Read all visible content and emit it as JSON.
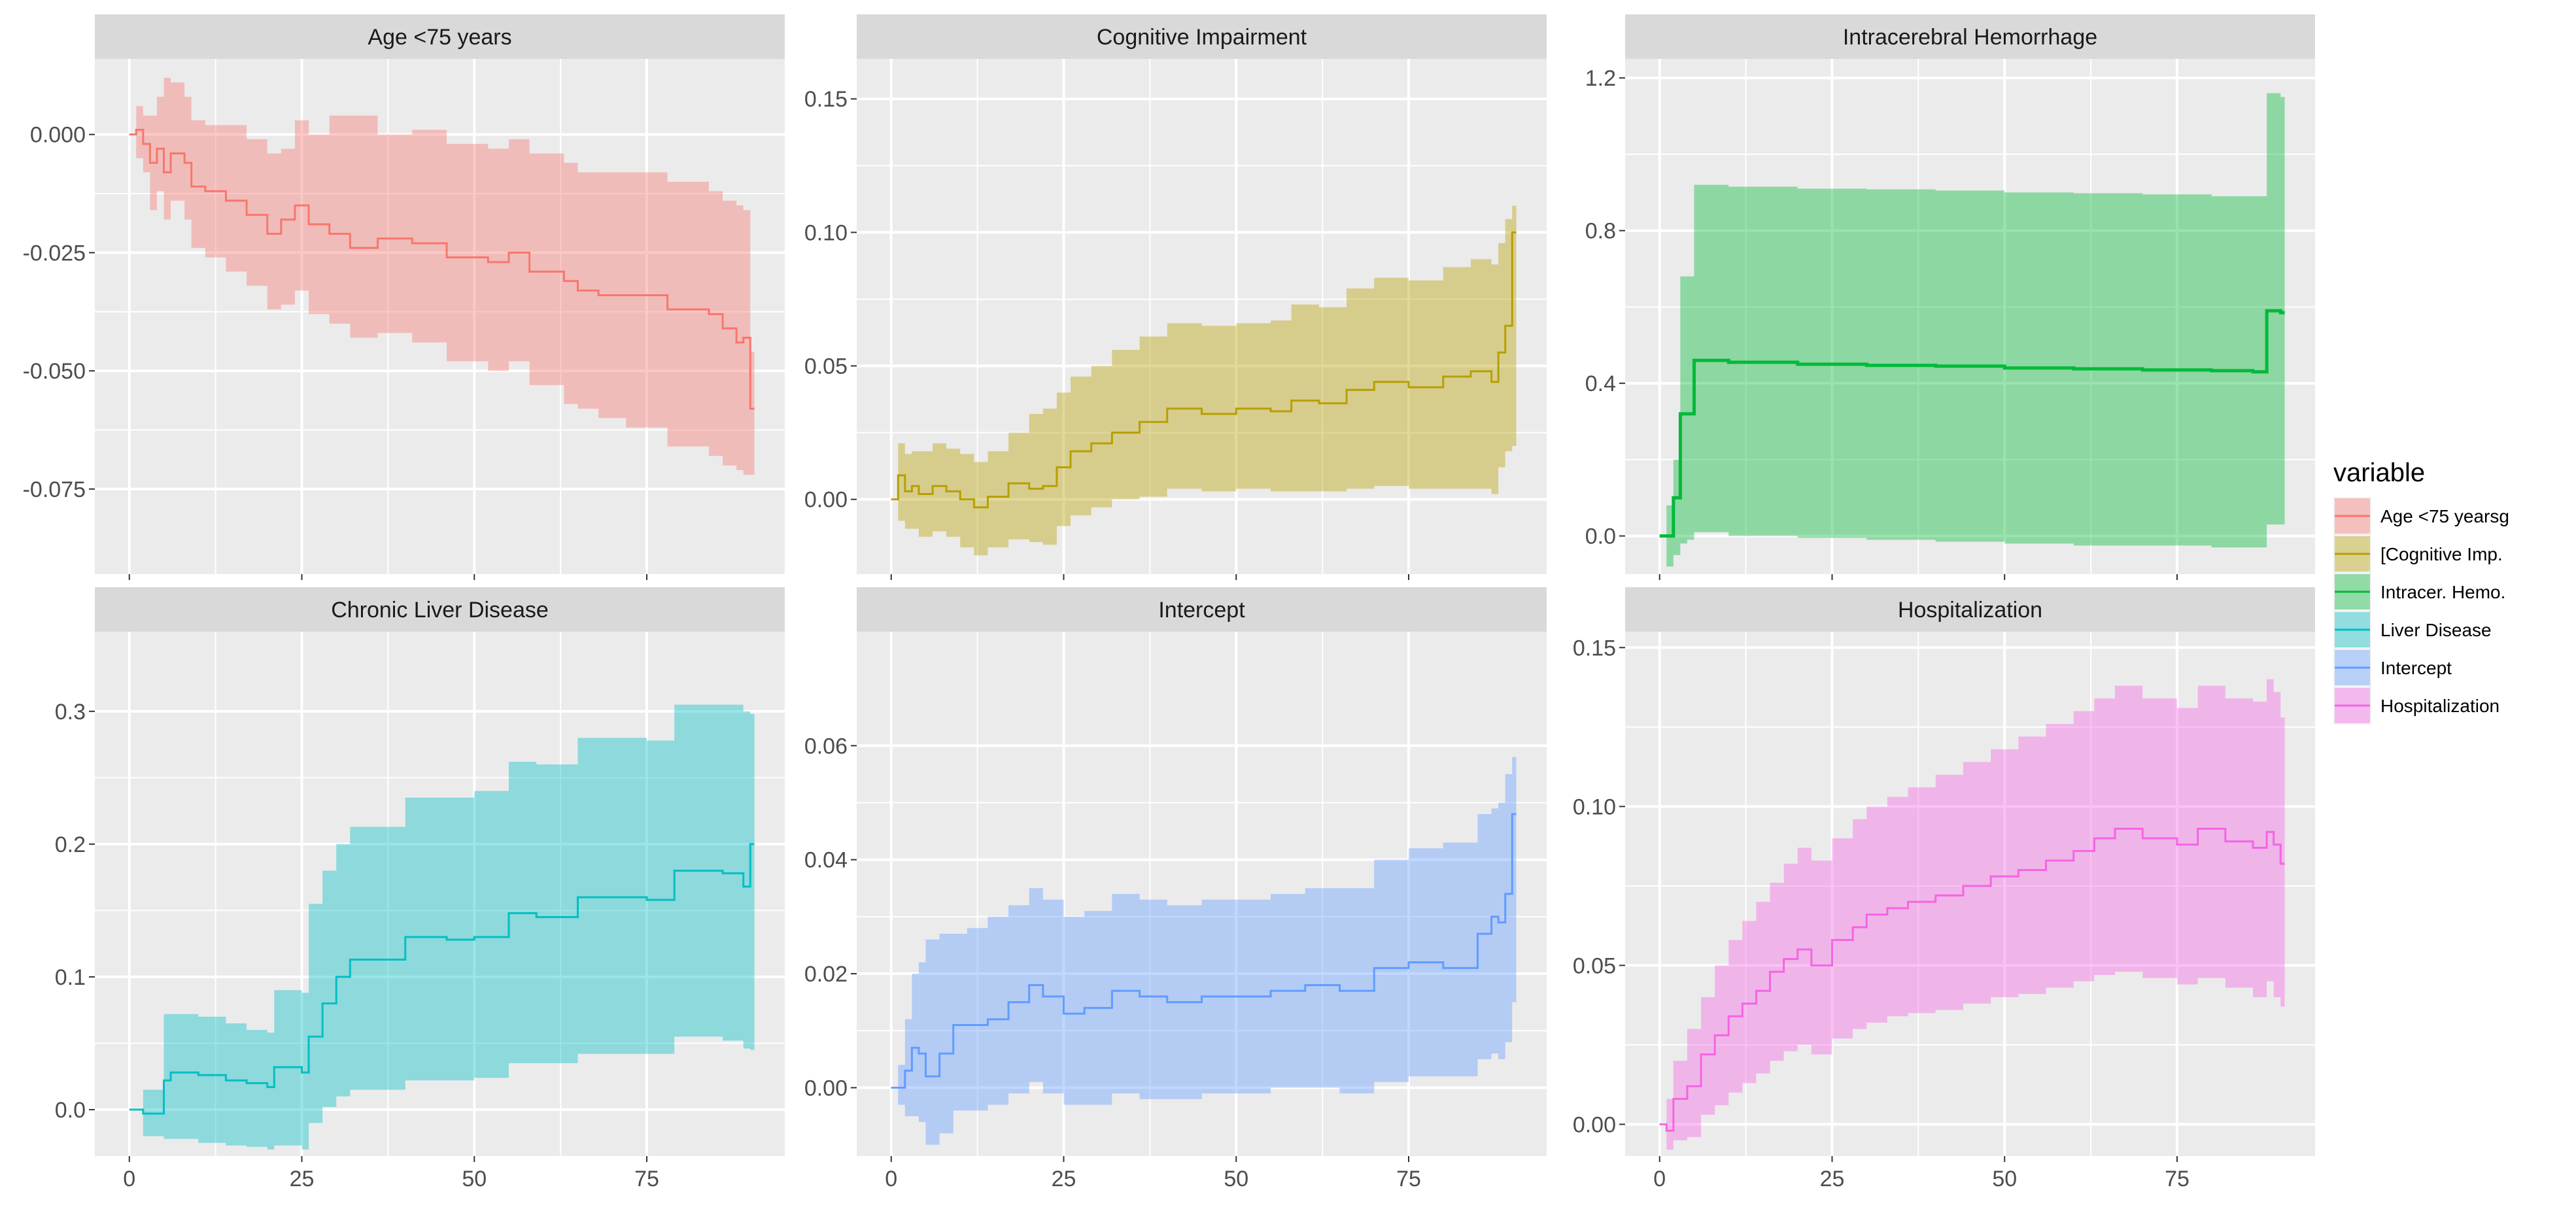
{
  "chart_data": {
    "type": "area",
    "description_free": true,
    "legend": {
      "title": "variable",
      "entries": [
        {
          "label": "Age <75 yearsg",
          "color": "#F8766D"
        },
        {
          "label": "[Cognitive Imp.",
          "color": "#B79F00"
        },
        {
          "label": "Intracer. Hemo.",
          "color": "#00BA38"
        },
        {
          "label": "Liver Disease",
          "color": "#00BFC4"
        },
        {
          "label": "Intercept",
          "color": "#619CFF"
        },
        {
          "label": "Hospitalization",
          "color": "#F564E3"
        }
      ]
    },
    "x_ticks": [
      0,
      25,
      50,
      75
    ],
    "xlim": [
      -5,
      95
    ],
    "panels": [
      {
        "title": "Age <75 years",
        "color": "#F8766D",
        "ylim": [
          -0.093,
          0.016
        ],
        "y_ticks": [
          0.0,
          -0.025,
          -0.05,
          -0.075
        ],
        "y_tick_labels": [
          "0.000",
          "-0.025",
          "-0.050",
          "-0.075"
        ],
        "x": [
          0,
          1,
          2,
          3,
          4,
          5,
          6,
          8,
          9,
          11,
          14,
          17,
          20,
          22,
          24,
          26,
          29,
          32,
          36,
          41,
          46,
          52,
          55,
          58,
          63,
          65,
          68,
          72,
          78,
          84,
          86,
          88,
          89,
          90
        ],
        "mean": [
          0.0,
          0.001,
          -0.002,
          -0.006,
          -0.003,
          -0.008,
          -0.004,
          -0.006,
          -0.011,
          -0.012,
          -0.014,
          -0.017,
          -0.021,
          -0.018,
          -0.015,
          -0.019,
          -0.021,
          -0.024,
          -0.022,
          -0.023,
          -0.026,
          -0.027,
          -0.025,
          -0.029,
          -0.031,
          -0.033,
          -0.034,
          -0.034,
          -0.037,
          -0.038,
          -0.041,
          -0.044,
          -0.043,
          -0.058
        ],
        "lower": [
          0.0,
          -0.005,
          -0.008,
          -0.016,
          -0.012,
          -0.018,
          -0.014,
          -0.018,
          -0.024,
          -0.026,
          -0.029,
          -0.032,
          -0.037,
          -0.036,
          -0.033,
          -0.038,
          -0.04,
          -0.043,
          -0.042,
          -0.044,
          -0.048,
          -0.05,
          -0.048,
          -0.053,
          -0.057,
          -0.058,
          -0.06,
          -0.062,
          -0.066,
          -0.068,
          -0.07,
          -0.071,
          -0.072,
          -0.072
        ],
        "upper": [
          0.0,
          0.006,
          0.004,
          0.004,
          0.008,
          0.012,
          0.011,
          0.008,
          0.003,
          0.002,
          0.002,
          -0.001,
          -0.004,
          -0.003,
          0.003,
          0.0,
          0.004,
          0.004,
          0.0,
          0.001,
          -0.002,
          -0.003,
          -0.001,
          -0.004,
          -0.006,
          -0.008,
          -0.008,
          -0.008,
          -0.01,
          -0.012,
          -0.014,
          -0.015,
          -0.016,
          -0.046
        ]
      },
      {
        "title": "Cognitive Impairment",
        "color": "#B79F00",
        "ylim": [
          -0.028,
          0.165
        ],
        "y_ticks": [
          0.0,
          0.05,
          0.1,
          0.15
        ],
        "y_tick_labels": [
          "0.00",
          "0.05",
          "0.10",
          "0.15"
        ],
        "x": [
          0,
          1,
          2,
          3,
          4,
          6,
          8,
          10,
          12,
          14,
          17,
          20,
          22,
          24,
          26,
          29,
          32,
          36,
          40,
          45,
          50,
          55,
          58,
          62,
          66,
          70,
          75,
          80,
          84,
          87,
          88,
          89,
          90
        ],
        "mean": [
          0.0,
          0.009,
          0.003,
          0.005,
          0.002,
          0.005,
          0.003,
          0.0,
          -0.003,
          0.001,
          0.006,
          0.004,
          0.005,
          0.012,
          0.018,
          0.021,
          0.025,
          0.029,
          0.034,
          0.032,
          0.034,
          0.033,
          0.037,
          0.036,
          0.041,
          0.044,
          0.042,
          0.046,
          0.048,
          0.044,
          0.055,
          0.065,
          0.1
        ],
        "lower": [
          0.0,
          -0.008,
          -0.011,
          -0.011,
          -0.014,
          -0.012,
          -0.014,
          -0.018,
          -0.021,
          -0.018,
          -0.015,
          -0.016,
          -0.017,
          -0.01,
          -0.006,
          -0.003,
          0.0,
          0.001,
          0.004,
          0.003,
          0.004,
          0.003,
          0.003,
          0.003,
          0.004,
          0.005,
          0.004,
          0.004,
          0.004,
          0.002,
          0.012,
          0.018,
          0.02
        ],
        "upper": [
          0.0,
          0.021,
          0.017,
          0.018,
          0.018,
          0.021,
          0.019,
          0.017,
          0.014,
          0.018,
          0.025,
          0.032,
          0.034,
          0.04,
          0.046,
          0.05,
          0.056,
          0.061,
          0.066,
          0.065,
          0.066,
          0.067,
          0.073,
          0.072,
          0.079,
          0.083,
          0.082,
          0.087,
          0.09,
          0.088,
          0.096,
          0.105,
          0.11
        ]
      },
      {
        "title": "Intracerebral Hemorrhage",
        "color": "#00BA38",
        "ylim": [
          -0.1,
          1.25
        ],
        "y_ticks": [
          0.0,
          0.4,
          0.8,
          1.2
        ],
        "y_tick_labels": [
          "0.0",
          "0.4",
          "0.8",
          "1.2"
        ],
        "x": [
          0,
          1,
          2,
          3,
          4,
          5,
          7,
          10,
          20,
          30,
          40,
          50,
          60,
          70,
          80,
          86,
          87,
          88,
          89,
          90
        ],
        "mean": [
          0.0,
          0.0,
          0.1,
          0.32,
          0.32,
          0.46,
          0.46,
          0.455,
          0.45,
          0.447,
          0.445,
          0.44,
          0.438,
          0.435,
          0.433,
          0.43,
          0.43,
          0.59,
          0.59,
          0.585
        ],
        "lower": [
          0.0,
          -0.08,
          -0.05,
          -0.02,
          -0.01,
          0.01,
          0.01,
          0.0,
          -0.005,
          -0.01,
          -0.015,
          -0.02,
          -0.025,
          -0.025,
          -0.03,
          -0.03,
          -0.03,
          0.03,
          0.03,
          0.03
        ],
        "upper": [
          0.0,
          0.08,
          0.2,
          0.68,
          0.68,
          0.92,
          0.92,
          0.915,
          0.91,
          0.908,
          0.905,
          0.9,
          0.898,
          0.895,
          0.89,
          0.89,
          0.89,
          1.16,
          1.16,
          1.15
        ]
      },
      {
        "title": "Chronic Liver Disease",
        "color": "#00BFC4",
        "ylim": [
          -0.035,
          0.36
        ],
        "y_ticks": [
          0.0,
          0.1,
          0.2,
          0.3
        ],
        "y_tick_labels": [
          "0.0",
          "0.1",
          "0.2",
          "0.3"
        ],
        "x": [
          0,
          2,
          5,
          6,
          10,
          14,
          17,
          20,
          21,
          25,
          26,
          28,
          30,
          32,
          36,
          40,
          46,
          50,
          55,
          59,
          65,
          70,
          75,
          79,
          86,
          89,
          90
        ],
        "mean": [
          0.0,
          -0.003,
          0.022,
          0.028,
          0.026,
          0.022,
          0.02,
          0.017,
          0.032,
          0.028,
          0.055,
          0.08,
          0.1,
          0.113,
          0.113,
          0.13,
          0.128,
          0.13,
          0.148,
          0.145,
          0.16,
          0.16,
          0.158,
          0.18,
          0.178,
          0.168,
          0.2
        ],
        "lower": [
          0.0,
          -0.02,
          -0.022,
          -0.022,
          -0.025,
          -0.027,
          -0.028,
          -0.03,
          -0.027,
          -0.03,
          -0.01,
          0.002,
          0.01,
          0.015,
          0.015,
          0.022,
          0.022,
          0.024,
          0.035,
          0.035,
          0.042,
          0.042,
          0.042,
          0.055,
          0.052,
          0.046,
          0.045
        ],
        "upper": [
          0.0,
          0.015,
          0.072,
          0.072,
          0.07,
          0.065,
          0.06,
          0.058,
          0.09,
          0.088,
          0.155,
          0.18,
          0.2,
          0.213,
          0.213,
          0.235,
          0.235,
          0.24,
          0.262,
          0.26,
          0.28,
          0.28,
          0.278,
          0.305,
          0.305,
          0.3,
          0.298
        ]
      },
      {
        "title": "Intercept",
        "color": "#619CFF",
        "ylim": [
          -0.012,
          0.08
        ],
        "y_ticks": [
          0.0,
          0.02,
          0.04,
          0.06
        ],
        "y_tick_labels": [
          "0.00",
          "0.02",
          "0.04",
          "0.06"
        ],
        "x": [
          0,
          1,
          2,
          3,
          4,
          5,
          7,
          9,
          11,
          14,
          17,
          20,
          22,
          25,
          28,
          32,
          36,
          40,
          45,
          50,
          55,
          60,
          65,
          70,
          75,
          80,
          85,
          87,
          88,
          89,
          90
        ],
        "mean": [
          0.0,
          0.0,
          0.003,
          0.007,
          0.006,
          0.002,
          0.006,
          0.011,
          0.011,
          0.012,
          0.015,
          0.018,
          0.016,
          0.013,
          0.014,
          0.017,
          0.016,
          0.015,
          0.016,
          0.016,
          0.017,
          0.018,
          0.017,
          0.021,
          0.022,
          0.021,
          0.027,
          0.03,
          0.029,
          0.034,
          0.048
        ],
        "lower": [
          0.0,
          -0.003,
          -0.005,
          -0.005,
          -0.006,
          -0.01,
          -0.008,
          -0.004,
          -0.004,
          -0.003,
          -0.001,
          0.001,
          -0.001,
          -0.003,
          -0.003,
          -0.001,
          -0.002,
          -0.002,
          -0.001,
          -0.001,
          0.0,
          0.0,
          -0.001,
          0.001,
          0.002,
          0.002,
          0.005,
          0.006,
          0.005,
          0.008,
          0.015
        ],
        "upper": [
          0.0,
          0.004,
          0.012,
          0.02,
          0.022,
          0.026,
          0.027,
          0.027,
          0.028,
          0.03,
          0.032,
          0.035,
          0.033,
          0.03,
          0.031,
          0.034,
          0.033,
          0.032,
          0.033,
          0.033,
          0.034,
          0.035,
          0.035,
          0.04,
          0.042,
          0.043,
          0.048,
          0.049,
          0.05,
          0.055,
          0.058
        ]
      },
      {
        "title": "Hospitalization",
        "color": "#F564E3",
        "ylim": [
          -0.01,
          0.155
        ],
        "y_ticks": [
          0.0,
          0.05,
          0.1,
          0.15
        ],
        "y_tick_labels": [
          "0.00",
          "0.05",
          "0.10",
          "0.15"
        ],
        "x": [
          0,
          1,
          2,
          4,
          6,
          8,
          10,
          12,
          14,
          16,
          18,
          20,
          22,
          25,
          28,
          30,
          33,
          36,
          40,
          44,
          48,
          52,
          56,
          60,
          63,
          66,
          70,
          75,
          78,
          82,
          86,
          88,
          89,
          90
        ],
        "mean": [
          0.0,
          -0.002,
          0.008,
          0.012,
          0.022,
          0.028,
          0.034,
          0.038,
          0.042,
          0.048,
          0.052,
          0.055,
          0.05,
          0.058,
          0.062,
          0.066,
          0.068,
          0.07,
          0.072,
          0.075,
          0.078,
          0.08,
          0.083,
          0.086,
          0.09,
          0.093,
          0.09,
          0.088,
          0.093,
          0.089,
          0.087,
          0.092,
          0.088,
          0.082
        ],
        "lower": [
          0.0,
          -0.008,
          -0.005,
          -0.004,
          0.003,
          0.006,
          0.01,
          0.013,
          0.016,
          0.02,
          0.023,
          0.025,
          0.022,
          0.027,
          0.03,
          0.032,
          0.034,
          0.035,
          0.036,
          0.038,
          0.04,
          0.041,
          0.043,
          0.045,
          0.047,
          0.048,
          0.046,
          0.044,
          0.046,
          0.043,
          0.04,
          0.045,
          0.04,
          0.037
        ],
        "upper": [
          0.0,
          0.008,
          0.02,
          0.03,
          0.04,
          0.05,
          0.058,
          0.064,
          0.07,
          0.076,
          0.082,
          0.087,
          0.083,
          0.09,
          0.096,
          0.1,
          0.103,
          0.106,
          0.11,
          0.114,
          0.118,
          0.122,
          0.126,
          0.13,
          0.134,
          0.138,
          0.134,
          0.131,
          0.138,
          0.134,
          0.133,
          0.14,
          0.136,
          0.128
        ]
      }
    ]
  }
}
